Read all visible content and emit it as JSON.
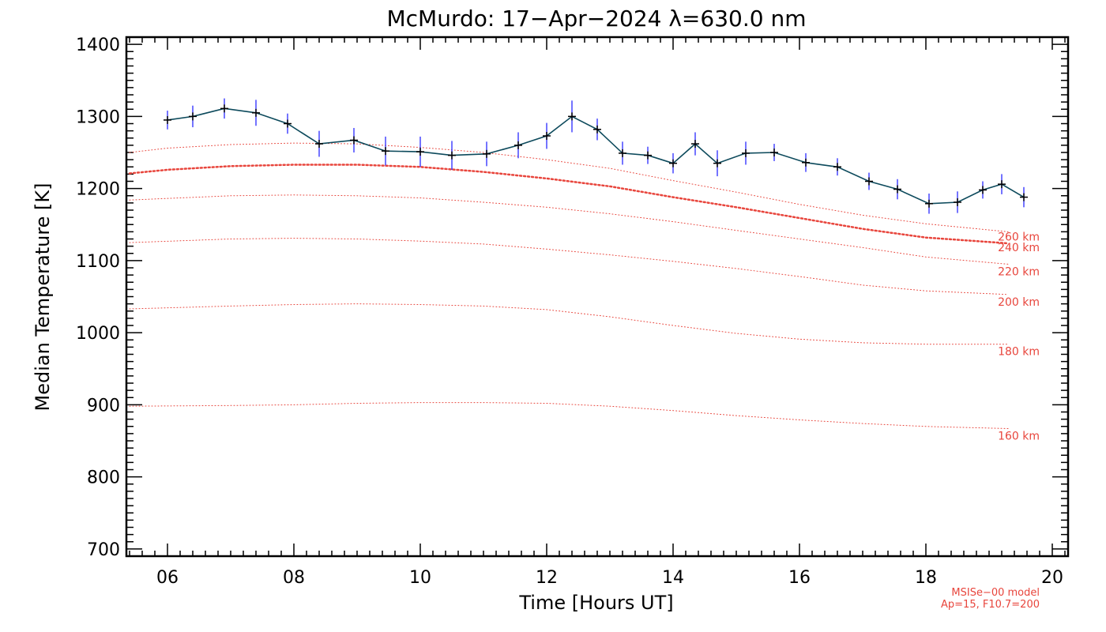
{
  "chart_data": {
    "type": "line",
    "title": "McMurdo: 17−Apr−2024 λ=630.0 nm",
    "xlabel": "Time [Hours UT]",
    "ylabel": "Median Temperature [K]",
    "xlim": [
      5.35,
      20.25
    ],
    "ylim": [
      690,
      1410
    ],
    "x_ticks": [
      6,
      8,
      10,
      12,
      14,
      16,
      18,
      20
    ],
    "x_tick_labels": [
      "06",
      "08",
      "10",
      "12",
      "14",
      "16",
      "18",
      "20"
    ],
    "y_ticks": [
      700,
      800,
      900,
      1000,
      1100,
      1200,
      1300,
      1400
    ],
    "y_tick_labels": [
      "700",
      "800",
      "900",
      "1000",
      "1100",
      "1200",
      "1300",
      "1400"
    ],
    "colors": {
      "data_line": "#0d4a5c",
      "error_bar": "#2a2aff",
      "marker": "#000000",
      "model": "#e8453c"
    },
    "measured": {
      "x": [
        6.0,
        6.4,
        6.9,
        7.4,
        7.9,
        8.4,
        8.95,
        9.45,
        10.0,
        10.5,
        11.05,
        11.55,
        12.0,
        12.4,
        12.8,
        13.2,
        13.6,
        14.0,
        14.35,
        14.7,
        15.15,
        15.6,
        16.1,
        16.6,
        17.1,
        17.55,
        18.05,
        18.5,
        18.9,
        19.2,
        19.55
      ],
      "y": [
        1295,
        1300,
        1311,
        1305,
        1290,
        1262,
        1267,
        1252,
        1251,
        1246,
        1248,
        1260,
        1273,
        1300,
        1282,
        1249,
        1246,
        1235,
        1262,
        1235,
        1249,
        1250,
        1236,
        1230,
        1210,
        1199,
        1179,
        1181,
        1198,
        1206,
        1188
      ],
      "err": [
        13,
        15,
        14,
        18,
        14,
        18,
        17,
        20,
        21,
        20,
        17,
        18,
        18,
        22,
        15,
        16,
        12,
        14,
        16,
        18,
        16,
        12,
        13,
        12,
        12,
        14,
        14,
        15,
        12,
        14,
        14
      ]
    },
    "model_series": [
      {
        "name": "160 km",
        "emphasized": false,
        "x": [
          5.4,
          7,
          8,
          9,
          10,
          11,
          12,
          13,
          14,
          15,
          16,
          17,
          18,
          19.3
        ],
        "y": [
          898,
          899,
          900,
          902,
          903,
          903,
          902,
          898,
          892,
          885,
          879,
          874,
          870,
          867
        ]
      },
      {
        "name": "180 km",
        "emphasized": false,
        "x": [
          5.4,
          7,
          8,
          9,
          10,
          11,
          12,
          13,
          14,
          15,
          16,
          17,
          18,
          19.3
        ],
        "y": [
          1033,
          1037,
          1039,
          1040,
          1039,
          1037,
          1032,
          1022,
          1010,
          999,
          991,
          986,
          984,
          984
        ]
      },
      {
        "name": "200 km",
        "emphasized": false,
        "x": [
          5.4,
          7,
          8,
          9,
          10,
          11,
          12,
          13,
          14,
          15,
          16,
          17,
          18,
          19.3
        ],
        "y": [
          1125,
          1130,
          1131,
          1130,
          1127,
          1123,
          1116,
          1108,
          1099,
          1089,
          1078,
          1066,
          1058,
          1053
        ]
      },
      {
        "name": "220 km",
        "emphasized": false,
        "x": [
          5.4,
          7,
          8,
          9,
          10,
          11,
          12,
          13,
          14,
          15,
          16,
          17,
          18,
          19.3
        ],
        "y": [
          1184,
          1190,
          1191,
          1190,
          1187,
          1181,
          1174,
          1165,
          1154,
          1142,
          1130,
          1118,
          1105,
          1095
        ]
      },
      {
        "name": "240 km",
        "emphasized": true,
        "x": [
          5.4,
          6,
          7,
          8,
          9,
          10,
          11,
          12,
          13,
          14,
          15,
          16,
          17,
          18,
          19.3
        ],
        "y": [
          1221,
          1226,
          1231,
          1233,
          1233,
          1230,
          1223,
          1214,
          1203,
          1188,
          1174,
          1159,
          1144,
          1132,
          1124
        ]
      },
      {
        "name": "260 km",
        "emphasized": false,
        "x": [
          5.4,
          6,
          7,
          8,
          9,
          10,
          11,
          12,
          13,
          14,
          15,
          16,
          17,
          18,
          19.3
        ],
        "y": [
          1250,
          1256,
          1261,
          1263,
          1262,
          1257,
          1250,
          1240,
          1228,
          1211,
          1195,
          1178,
          1163,
          1151,
          1140
        ]
      }
    ],
    "model_note_line1": "MSISe−00 model",
    "model_note_line2": "Ap=15, F10.7=200"
  }
}
